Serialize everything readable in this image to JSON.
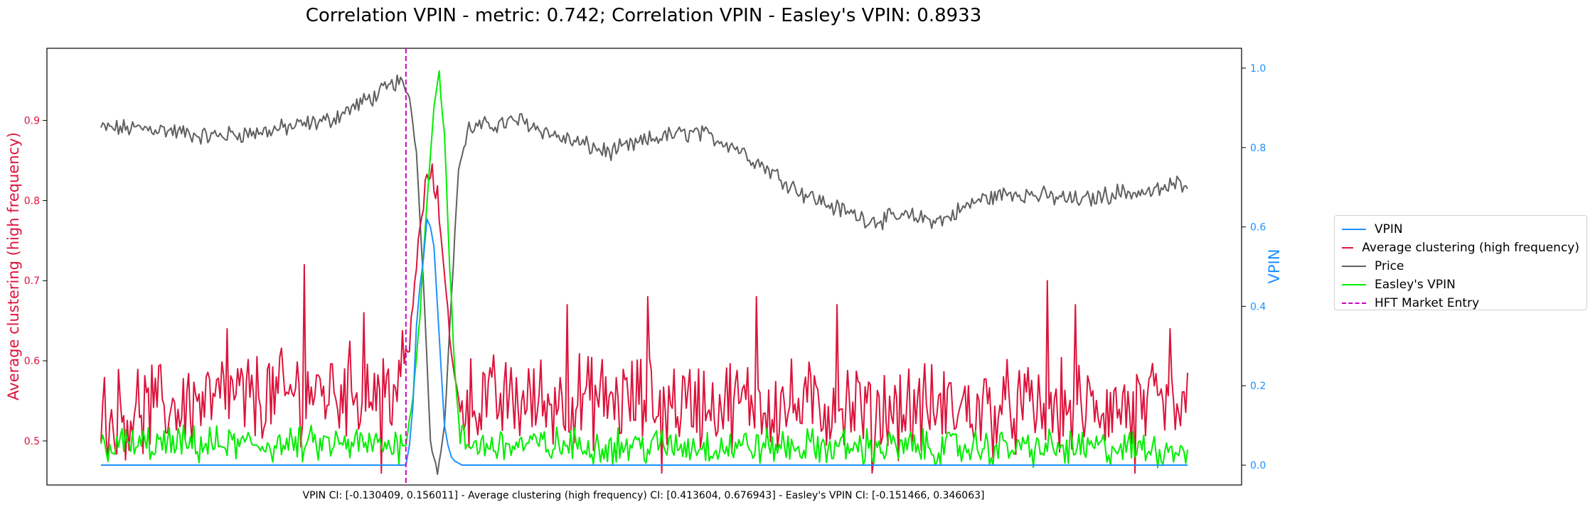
{
  "chart_data": {
    "type": "line",
    "title": "Correlation VPIN - metric: 0.742; Correlation VPIN - Easley's VPIN: 0.8933",
    "footer": "VPIN CI: [-0.130409, 0.156011] - Average clustering (high frequency) CI: [0.413604, 0.676943] - Easley's VPIN CI: [-0.151466, 0.346063]",
    "left_axis": {
      "label": "Average clustering (high frequency)",
      "color": "#dc143c",
      "ylim": [
        0.445,
        0.99
      ],
      "ticks": [
        "0.5",
        "0.6",
        "0.7",
        "0.8",
        "0.9"
      ]
    },
    "right_axis": {
      "label": "VPIN",
      "color": "#1e90ff",
      "ylim": [
        -0.05,
        1.05
      ],
      "ticks": [
        "0.0",
        "0.2",
        "0.4",
        "0.6",
        "0.8",
        "1.0"
      ]
    },
    "xlim": [
      0,
      620
    ],
    "legend_position": "right",
    "legend": [
      {
        "label": "VPIN",
        "color": "#1e90ff",
        "dashed": false
      },
      {
        "label": "Average clustering (high frequency)",
        "color": "#dc143c",
        "dashed": false
      },
      {
        "label": "Price",
        "color": "#606060",
        "dashed": false
      },
      {
        "label": "Easley's VPIN",
        "color": "#00ee00",
        "dashed": false
      },
      {
        "label": "HFT Market Entry",
        "color": "#cc00cc",
        "dashed": true
      }
    ],
    "hft_entry_x": 174,
    "series": [
      {
        "name": "VPIN",
        "axis": "right",
        "color": "#1e90ff",
        "points": [
          [
            0,
            0
          ],
          [
            174,
            0
          ],
          [
            176,
            0.05
          ],
          [
            178,
            0.15
          ],
          [
            180,
            0.35
          ],
          [
            182,
            0.45
          ],
          [
            184,
            0.52
          ],
          [
            186,
            0.62
          ],
          [
            188,
            0.6
          ],
          [
            190,
            0.55
          ],
          [
            192,
            0.4
          ],
          [
            194,
            0.25
          ],
          [
            196,
            0.1
          ],
          [
            198,
            0.05
          ],
          [
            200,
            0.02
          ],
          [
            202,
            0.01
          ],
          [
            204,
            0.005
          ],
          [
            206,
            0
          ],
          [
            620,
            0
          ]
        ]
      },
      {
        "name": "Average clustering (high frequency)",
        "axis": "left",
        "color": "#dc143c",
        "keypoints": [
          [
            0,
            0.53
          ],
          [
            60,
            0.55
          ],
          [
            120,
            0.56
          ],
          [
            170,
            0.57
          ],
          [
            176,
            0.62
          ],
          [
            180,
            0.72
          ],
          [
            184,
            0.8
          ],
          [
            188,
            0.84
          ],
          [
            192,
            0.8
          ],
          [
            196,
            0.72
          ],
          [
            200,
            0.6
          ],
          [
            204,
            0.55
          ],
          [
            300,
            0.55
          ],
          [
            450,
            0.54
          ],
          [
            620,
            0.54
          ]
        ],
        "noise": 0.045,
        "spikes": [
          [
            116,
            0.72
          ],
          [
            72,
            0.64
          ],
          [
            150,
            0.66
          ],
          [
            266,
            0.67
          ],
          [
            312,
            0.68
          ],
          [
            374,
            0.68
          ],
          [
            420,
            0.67
          ],
          [
            540,
            0.7
          ],
          [
            556,
            0.67
          ],
          [
            610,
            0.64
          ],
          [
            160,
            0.46
          ],
          [
            320,
            0.46
          ],
          [
            440,
            0.46
          ],
          [
            590,
            0.46
          ]
        ]
      },
      {
        "name": "Price",
        "axis": "left",
        "color": "#606060",
        "keypoints": [
          [
            0,
            0.89
          ],
          [
            30,
            0.89
          ],
          [
            60,
            0.88
          ],
          [
            90,
            0.885
          ],
          [
            130,
            0.9
          ],
          [
            160,
            0.935
          ],
          [
            170,
            0.95
          ],
          [
            176,
            0.93
          ],
          [
            180,
            0.86
          ],
          [
            184,
            0.7
          ],
          [
            188,
            0.5
          ],
          [
            192,
            0.46
          ],
          [
            196,
            0.52
          ],
          [
            200,
            0.68
          ],
          [
            204,
            0.84
          ],
          [
            210,
            0.89
          ],
          [
            240,
            0.9
          ],
          [
            260,
            0.88
          ],
          [
            290,
            0.86
          ],
          [
            320,
            0.88
          ],
          [
            340,
            0.885
          ],
          [
            360,
            0.87
          ],
          [
            380,
            0.84
          ],
          [
            400,
            0.81
          ],
          [
            420,
            0.79
          ],
          [
            440,
            0.775
          ],
          [
            460,
            0.78
          ],
          [
            480,
            0.775
          ],
          [
            500,
            0.8
          ],
          [
            520,
            0.81
          ],
          [
            540,
            0.805
          ],
          [
            560,
            0.8
          ],
          [
            580,
            0.81
          ],
          [
            600,
            0.81
          ],
          [
            620,
            0.825
          ]
        ],
        "noise": 0.009
      },
      {
        "name": "Easley's VPIN",
        "axis": "left",
        "color": "#00ee00",
        "keypoints": [
          [
            0,
            0.495
          ],
          [
            170,
            0.495
          ],
          [
            174,
            0.5
          ],
          [
            178,
            0.55
          ],
          [
            182,
            0.66
          ],
          [
            186,
            0.8
          ],
          [
            190,
            0.92
          ],
          [
            193,
            0.96
          ],
          [
            196,
            0.88
          ],
          [
            199,
            0.72
          ],
          [
            202,
            0.58
          ],
          [
            205,
            0.5
          ],
          [
            210,
            0.495
          ],
          [
            620,
            0.49
          ]
        ],
        "noise": 0.018
      }
    ]
  }
}
